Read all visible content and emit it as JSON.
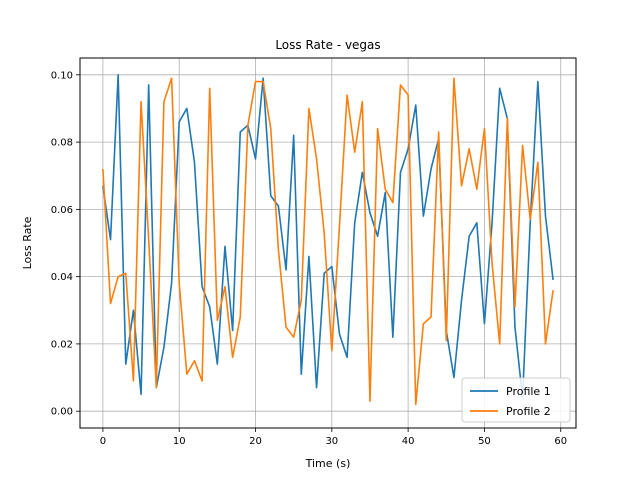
{
  "chart_data": {
    "type": "line",
    "title": "Loss Rate - vegas",
    "xlabel": "Time (s)",
    "ylabel": "Loss Rate",
    "xlim": [
      -3,
      62
    ],
    "ylim": [
      -0.005,
      0.105
    ],
    "xticks": [
      0,
      10,
      20,
      30,
      40,
      50,
      60
    ],
    "yticks": [
      0.0,
      0.02,
      0.04,
      0.06,
      0.08,
      0.1
    ],
    "ytick_labels": [
      "0.00",
      "0.02",
      "0.04",
      "0.06",
      "0.08",
      "0.10"
    ],
    "grid": true,
    "legend_position": "lower-right",
    "x": [
      0,
      1,
      2,
      3,
      4,
      5,
      6,
      7,
      8,
      9,
      10,
      11,
      12,
      13,
      14,
      15,
      16,
      17,
      18,
      19,
      20,
      21,
      22,
      23,
      24,
      25,
      26,
      27,
      28,
      29,
      30,
      31,
      32,
      33,
      34,
      35,
      36,
      37,
      38,
      39,
      40,
      41,
      42,
      43,
      44,
      45,
      46,
      47,
      48,
      49,
      50,
      51,
      52,
      53,
      54,
      55,
      56,
      57,
      58,
      59
    ],
    "series": [
      {
        "name": "Profile 1",
        "color": "#1f77b4",
        "values": [
          0.067,
          0.051,
          0.1,
          0.014,
          0.03,
          0.005,
          0.097,
          0.007,
          0.019,
          0.038,
          0.086,
          0.09,
          0.074,
          0.037,
          0.031,
          0.014,
          0.049,
          0.024,
          0.083,
          0.085,
          0.075,
          0.099,
          0.064,
          0.061,
          0.042,
          0.082,
          0.011,
          0.046,
          0.007,
          0.041,
          0.043,
          0.023,
          0.016,
          0.056,
          0.071,
          0.059,
          0.052,
          0.065,
          0.022,
          0.071,
          0.078,
          0.091,
          0.058,
          0.072,
          0.081,
          0.024,
          0.01,
          0.033,
          0.052,
          0.056,
          0.026,
          0.056,
          0.096,
          0.087,
          0.025,
          0.004,
          0.056,
          0.098,
          0.058,
          0.039
        ]
      },
      {
        "name": "Profile 2",
        "color": "#ff7f0e",
        "values": [
          0.072,
          0.032,
          0.04,
          0.041,
          0.009,
          0.092,
          0.051,
          0.007,
          0.092,
          0.099,
          0.038,
          0.011,
          0.015,
          0.009,
          0.096,
          0.027,
          0.037,
          0.016,
          0.028,
          0.085,
          0.098,
          0.098,
          0.084,
          0.048,
          0.025,
          0.022,
          0.033,
          0.09,
          0.075,
          0.053,
          0.018,
          0.055,
          0.094,
          0.077,
          0.092,
          0.003,
          0.084,
          0.066,
          0.062,
          0.097,
          0.094,
          0.002,
          0.026,
          0.028,
          0.083,
          0.021,
          0.099,
          0.067,
          0.078,
          0.066,
          0.084,
          0.044,
          0.02,
          0.087,
          0.031,
          0.079,
          0.057,
          0.074,
          0.02,
          0.036
        ]
      }
    ]
  }
}
